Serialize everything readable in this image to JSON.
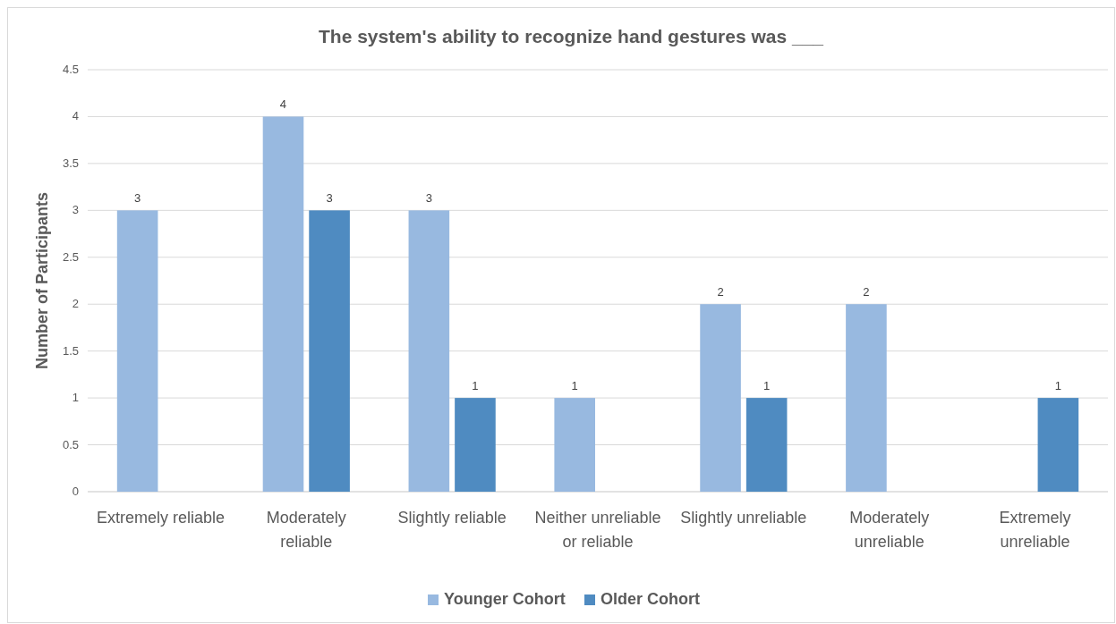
{
  "chart_data": {
    "type": "bar",
    "title": "The system's ability to recognize hand gestures was ___",
    "ylabel": "Number of Participants",
    "categories": [
      "Extremely reliable",
      "Moderately reliable",
      "Slightly reliable",
      "Neither unreliable or reliable",
      "Slightly unreliable",
      "Moderately unreliable",
      "Extremely unreliable"
    ],
    "series": [
      {
        "name": "Younger Cohort",
        "color": "#98b9e0",
        "values": [
          3,
          4,
          3,
          1,
          2,
          2,
          null
        ]
      },
      {
        "name": "Older Cohort",
        "color": "#4f8bc1",
        "values": [
          null,
          3,
          1,
          null,
          1,
          null,
          1
        ]
      }
    ],
    "ylim": [
      0,
      4.5
    ],
    "yticks": [
      0,
      0.5,
      1,
      1.5,
      2,
      2.5,
      3,
      3.5,
      4,
      4.5
    ],
    "grid": "y",
    "legend": "bottom",
    "data_labels": true
  }
}
